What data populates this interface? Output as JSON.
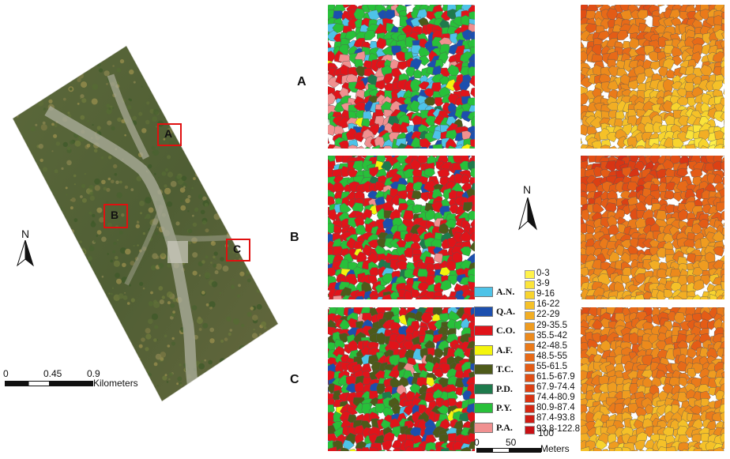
{
  "overview": {
    "north": "N",
    "boxes": [
      "A",
      "B",
      "C"
    ],
    "scale": {
      "ticks": [
        "0",
        "0.45",
        "0.9"
      ],
      "unit": "Kilometers"
    }
  },
  "rows": [
    "A",
    "B",
    "C"
  ],
  "north": "N",
  "species_legend": [
    {
      "label": "A.N.",
      "color": "#4ec3e8"
    },
    {
      "label": "Q.A.",
      "color": "#1c4fae"
    },
    {
      "label": "C.O.",
      "color": "#e0141a"
    },
    {
      "label": "A.F.",
      "color": "#f4f50c"
    },
    {
      "label": "T.C.",
      "color": "#4d5a1a"
    },
    {
      "label": "P.D.",
      "color": "#1e7a4c"
    },
    {
      "label": "P.Y.",
      "color": "#28c03a"
    },
    {
      "label": "P.A.",
      "color": "#f09090"
    }
  ],
  "class_legend": [
    {
      "label": "0-3",
      "color": "#fff24a"
    },
    {
      "label": "3-9",
      "color": "#fbe43a"
    },
    {
      "label": "9-16",
      "color": "#f8d42e"
    },
    {
      "label": "16-22",
      "color": "#f5c128"
    },
    {
      "label": "22-29",
      "color": "#f2ae24"
    },
    {
      "label": "29-35.5",
      "color": "#ef9c20"
    },
    {
      "label": "35.5-42",
      "color": "#ec8a1c"
    },
    {
      "label": "42-48.5",
      "color": "#ea7a1a"
    },
    {
      "label": "48.5-55",
      "color": "#e76a18"
    },
    {
      "label": "55-61.5",
      "color": "#e45c16"
    },
    {
      "label": "61.5-67.9",
      "color": "#e04e15"
    },
    {
      "label": "67.9-74.4",
      "color": "#dc4014"
    },
    {
      "label": "74.4-80.9",
      "color": "#d83414"
    },
    {
      "label": "80.9-87.4",
      "color": "#d42814"
    },
    {
      "label": "87.4-93.8",
      "color": "#cf1c14"
    },
    {
      "label": "93.8-122.8",
      "color": "#c81014"
    }
  ],
  "panel_scale": {
    "ticks": [
      "0",
      "50",
      "100"
    ],
    "unit": "Meters"
  }
}
